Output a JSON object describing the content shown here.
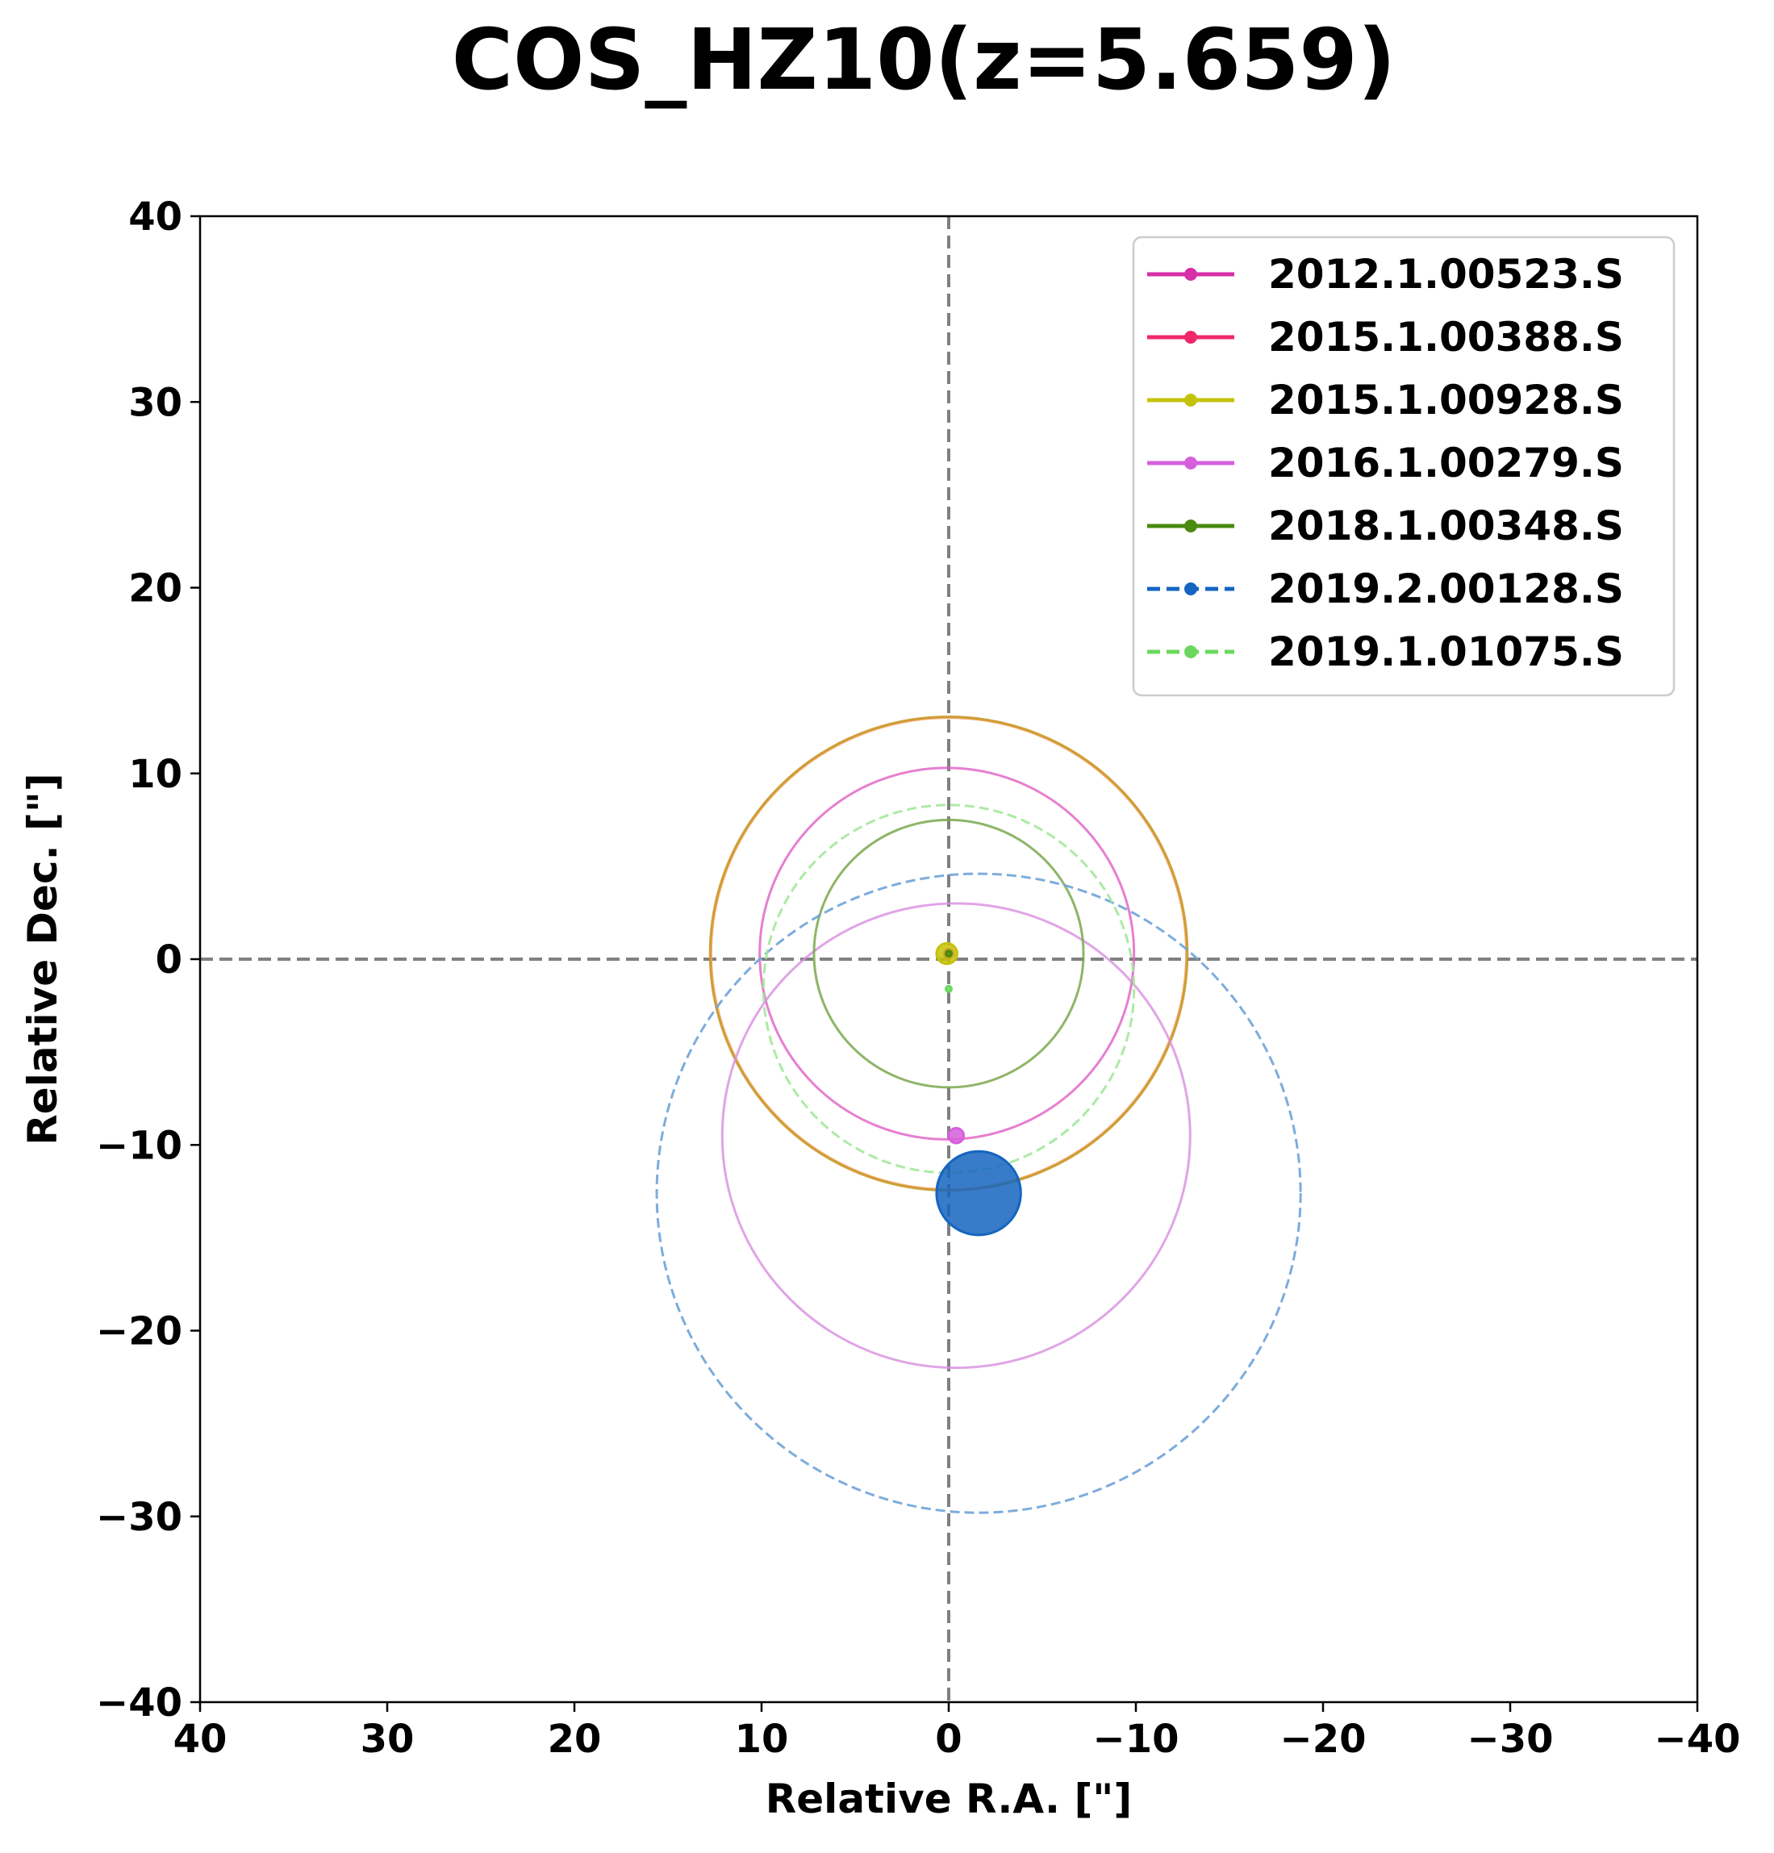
{
  "chart_data": {
    "type": "scatter",
    "title": "COS_HZ10(z=5.659)",
    "xlabel": "Relative R.A. [\"]",
    "ylabel": "Relative Dec. [\"]",
    "xlim": [
      40,
      -40
    ],
    "ylim": [
      -40,
      40
    ],
    "xticks": [
      40,
      30,
      20,
      10,
      0,
      -10,
      -20,
      -30,
      -40
    ],
    "yticks": [
      -40,
      -30,
      -20,
      -10,
      0,
      10,
      20,
      30,
      40
    ],
    "xtick_labels": [
      "40",
      "30",
      "20",
      "10",
      "0",
      "−10",
      "−20",
      "−30",
      "−40"
    ],
    "ytick_labels": [
      "−40",
      "−30",
      "−20",
      "−10",
      "0",
      "10",
      "20",
      "30",
      "40"
    ],
    "reference_lines": {
      "x": 0,
      "y": 0,
      "style": "dashed",
      "color": "#808080"
    },
    "legend_position": "top-right",
    "series": [
      {
        "name": "2012.1.00523.S",
        "color": "#d62fa8",
        "linestyle": "solid",
        "points": [
          {
            "x": 0.0,
            "y": 0.3,
            "marker_radius": 0.15
          }
        ],
        "circles": [
          {
            "x": 0.0,
            "y": 0.3,
            "r": 12.7,
            "color": "#f4a460",
            "opacity": 0.9
          }
        ]
      },
      {
        "name": "2015.1.00388.S",
        "color": "#f0286a",
        "linestyle": "solid",
        "points": [
          {
            "x": 0.0,
            "y": 0.3,
            "marker_radius": 0.25
          }
        ],
        "circles": [
          {
            "x": 0.0,
            "y": 0.3,
            "r": 12.75,
            "color": "#c99a2e",
            "opacity": 0.9
          }
        ]
      },
      {
        "name": "2015.1.00928.S",
        "color": "#c5c20a",
        "linestyle": "solid",
        "points": [
          {
            "x": 0.1,
            "y": 0.3,
            "marker_radius": 0.55
          }
        ],
        "circles": [
          {
            "x": 0.1,
            "y": 0.3,
            "r": 10.0,
            "color": "#e05fc4",
            "opacity": 0.8
          }
        ]
      },
      {
        "name": "2016.1.00279.S",
        "color": "#d65fdc",
        "linestyle": "solid",
        "points": [
          {
            "x": -0.4,
            "y": -9.5,
            "marker_radius": 0.4
          }
        ],
        "circles": [
          {
            "x": -0.4,
            "y": -9.5,
            "r": 12.5,
            "color": "#d88ee0",
            "opacity": 0.8
          }
        ]
      },
      {
        "name": "2018.1.00348.S",
        "color": "#4a8a10",
        "linestyle": "solid",
        "points": [
          {
            "x": 0.0,
            "y": 0.3,
            "marker_radius": 0.15
          }
        ],
        "circles": [
          {
            "x": 0.0,
            "y": 0.3,
            "r": 7.2,
            "color": "#7aa84e",
            "opacity": 0.85
          }
        ]
      },
      {
        "name": "2019.2.00128.S",
        "color": "#1565c0",
        "linestyle": "dashed",
        "points": [
          {
            "x": -1.6,
            "y": -12.6,
            "marker_radius": 2.25
          }
        ],
        "circles": [
          {
            "x": -1.6,
            "y": -12.6,
            "r": 17.2,
            "color": "#6fa3d8",
            "opacity": 0.9
          }
        ]
      },
      {
        "name": "2019.1.01075.S",
        "color": "#6ad85e",
        "linestyle": "dashed",
        "points": [
          {
            "x": 0.0,
            "y": -1.6,
            "marker_radius": 0.15
          }
        ],
        "circles": [
          {
            "x": 0.0,
            "y": -1.6,
            "r": 9.9,
            "color": "#a3e89a",
            "opacity": 0.9
          }
        ]
      }
    ]
  }
}
